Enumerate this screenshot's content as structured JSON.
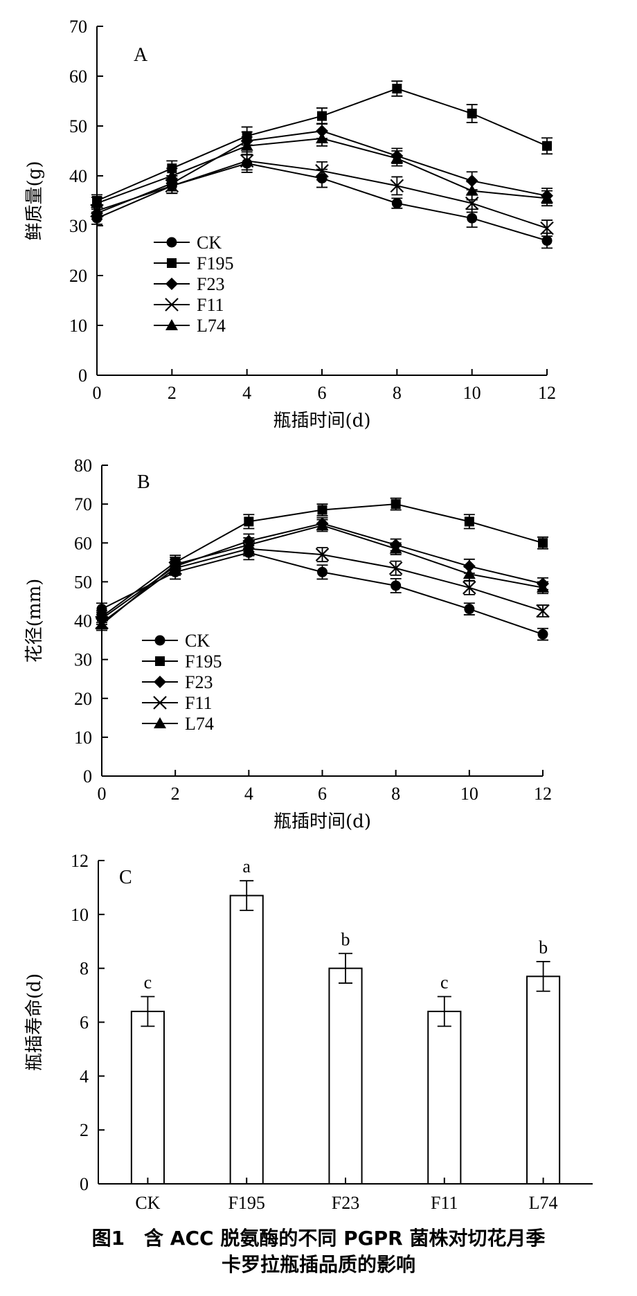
{
  "caption": {
    "line1": "图1　含 ACC 脱氨酶的不同 PGPR 菌株对切花月季",
    "line2": "卡罗拉瓶插品质的影响"
  },
  "chart_data": [
    {
      "panel": "A",
      "type": "line",
      "xlabel": "瓶插时间(d)",
      "ylabel": "鲜质量(g)",
      "x": [
        0,
        2,
        4,
        6,
        8,
        10,
        12
      ],
      "xticks": [
        "0",
        "2",
        "4",
        "6",
        "8",
        "10",
        "12"
      ],
      "yticks": [
        "0",
        "10",
        "20",
        "30",
        "40",
        "50",
        "60",
        "70"
      ],
      "ylim": [
        0,
        70
      ],
      "legend_position": "lower-left",
      "series": [
        {
          "name": "CK",
          "marker": "circle",
          "values": [
            31.5,
            38.0,
            42.5,
            39.5,
            34.5,
            31.5,
            27.0
          ],
          "errors": [
            1.2,
            1.5,
            1.8,
            1.8,
            1.0,
            1.8,
            1.5
          ]
        },
        {
          "name": "F195",
          "marker": "square",
          "values": [
            35.0,
            41.5,
            48.0,
            52.0,
            57.5,
            52.5,
            46.0
          ],
          "errors": [
            1.2,
            1.5,
            1.8,
            1.6,
            1.5,
            1.8,
            1.6
          ]
        },
        {
          "name": "F23",
          "marker": "diamond",
          "values": [
            32.5,
            38.5,
            47.0,
            49.0,
            44.0,
            39.0,
            36.0
          ],
          "errors": [
            1.2,
            1.5,
            1.8,
            1.5,
            1.5,
            1.8,
            1.5
          ]
        },
        {
          "name": "F11",
          "marker": "cross",
          "values": [
            33.0,
            38.0,
            43.0,
            41.0,
            38.0,
            34.5,
            29.5
          ],
          "errors": [
            1.2,
            1.5,
            1.8,
            1.8,
            1.8,
            1.8,
            1.6
          ]
        },
        {
          "name": "L74",
          "marker": "triangle",
          "values": [
            34.5,
            40.0,
            46.0,
            47.5,
            43.5,
            37.0,
            35.5
          ],
          "errors": [
            1.2,
            1.5,
            1.8,
            1.5,
            1.5,
            1.8,
            1.5
          ]
        }
      ]
    },
    {
      "panel": "B",
      "type": "line",
      "xlabel": "瓶插时间(d)",
      "ylabel": "花径(mm)",
      "x": [
        0,
        2,
        4,
        6,
        8,
        10,
        12
      ],
      "xticks": [
        "0",
        "2",
        "4",
        "6",
        "8",
        "10",
        "12"
      ],
      "yticks": [
        "0",
        "10",
        "20",
        "30",
        "40",
        "50",
        "60",
        "70",
        "80"
      ],
      "ylim": [
        0,
        80
      ],
      "legend_position": "lower-left",
      "series": [
        {
          "name": "CK",
          "marker": "circle",
          "values": [
            43.0,
            52.5,
            57.5,
            52.5,
            49.0,
            43.0,
            36.5
          ],
          "errors": [
            1.5,
            1.8,
            1.8,
            1.8,
            1.8,
            1.5,
            1.5
          ]
        },
        {
          "name": "F195",
          "marker": "square",
          "values": [
            41.0,
            55.0,
            65.5,
            68.5,
            70.0,
            65.5,
            60.0
          ],
          "errors": [
            1.5,
            1.8,
            1.8,
            1.5,
            1.5,
            1.8,
            1.5
          ]
        },
        {
          "name": "F23",
          "marker": "diamond",
          "values": [
            40.5,
            54.0,
            60.5,
            65.0,
            59.5,
            54.0,
            49.5
          ],
          "errors": [
            1.5,
            1.8,
            1.8,
            1.5,
            1.5,
            1.8,
            1.5
          ]
        },
        {
          "name": "F11",
          "marker": "cross",
          "values": [
            39.5,
            53.5,
            58.5,
            57.0,
            53.5,
            48.5,
            42.5
          ],
          "errors": [
            1.5,
            1.8,
            1.8,
            1.8,
            1.8,
            1.8,
            1.5
          ]
        },
        {
          "name": "L74",
          "marker": "triangle",
          "values": [
            39.0,
            54.5,
            59.5,
            64.5,
            58.5,
            52.0,
            48.5
          ],
          "errors": [
            1.5,
            1.8,
            1.8,
            1.5,
            1.5,
            1.8,
            1.5
          ]
        }
      ]
    },
    {
      "panel": "C",
      "type": "bar",
      "xlabel": "",
      "ylabel": "瓶插寿命(d)",
      "categories": [
        "CK",
        "F195",
        "F23",
        "F11",
        "L74"
      ],
      "values": [
        6.4,
        10.7,
        8.0,
        6.4,
        7.7
      ],
      "errors": [
        0.55,
        0.55,
        0.55,
        0.55,
        0.55
      ],
      "significance": [
        "c",
        "a",
        "b",
        "c",
        "b"
      ],
      "yticks": [
        "0",
        "2",
        "4",
        "6",
        "8",
        "10",
        "12"
      ],
      "ylim": [
        0,
        12
      ]
    }
  ]
}
